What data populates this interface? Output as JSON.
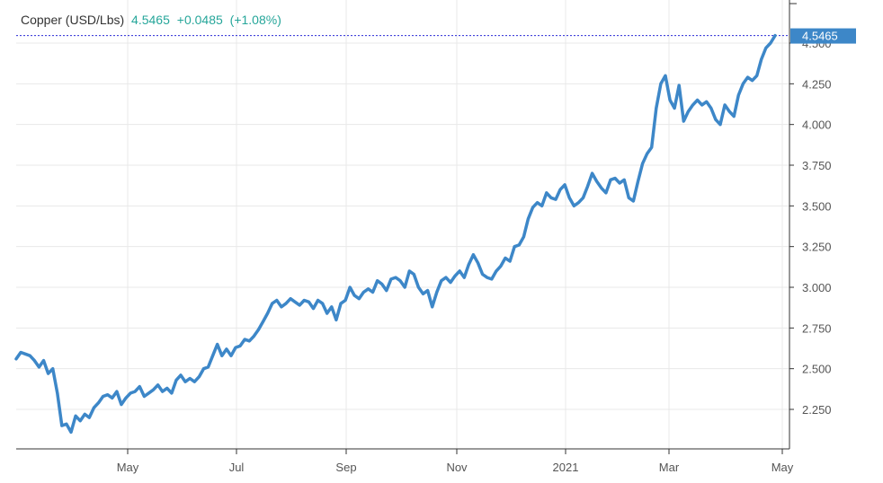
{
  "legend": {
    "name": "Copper (USD/Lbs)",
    "last": "4.5465",
    "change": "+0.0485",
    "change_pct": "(+1.08%)"
  },
  "colors": {
    "line": "#3d87c8",
    "grid": "#e8e8e8",
    "positive": "#26a69a",
    "last_label_bg": "#3d87c8",
    "last_line": "#2b2bd6"
  },
  "chart_data": {
    "type": "line",
    "title": "",
    "xlabel": "",
    "ylabel": "",
    "x_ticks": [
      "May",
      "Jul",
      "Sep",
      "Nov",
      "2021",
      "Mar",
      "May"
    ],
    "y_ticks": [
      "2.250",
      "2.500",
      "2.750",
      "3.000",
      "3.250",
      "3.500",
      "3.750",
      "4.000",
      "4.250",
      "4.500"
    ],
    "last_value": "4.5465",
    "grid": true,
    "series": [
      {
        "values": [
          2.56,
          2.6,
          2.59,
          2.58,
          2.55,
          2.51,
          2.55,
          2.47,
          2.5,
          2.35,
          2.15,
          2.16,
          2.11,
          2.21,
          2.18,
          2.22,
          2.2,
          2.26,
          2.29,
          2.33,
          2.34,
          2.32,
          2.36,
          2.28,
          2.32,
          2.35,
          2.36,
          2.39,
          2.33,
          2.35,
          2.37,
          2.4,
          2.36,
          2.38,
          2.35,
          2.43,
          2.46,
          2.42,
          2.44,
          2.42,
          2.45,
          2.5,
          2.51,
          2.58,
          2.65,
          2.58,
          2.62,
          2.58,
          2.63,
          2.64,
          2.68,
          2.67,
          2.7,
          2.74,
          2.79,
          2.84,
          2.9,
          2.92,
          2.88,
          2.9,
          2.93,
          2.91,
          2.89,
          2.92,
          2.91,
          2.87,
          2.92,
          2.9,
          2.84,
          2.88,
          2.8,
          2.9,
          2.92,
          3.0,
          2.95,
          2.93,
          2.97,
          2.99,
          2.97,
          3.04,
          3.02,
          2.98,
          3.05,
          3.06,
          3.04,
          3.0,
          3.1,
          3.08,
          3.0,
          2.96,
          2.98,
          2.88,
          2.97,
          3.04,
          3.06,
          3.03,
          3.07,
          3.1,
          3.06,
          3.14,
          3.2,
          3.15,
          3.08,
          3.06,
          3.05,
          3.1,
          3.13,
          3.18,
          3.16,
          3.25,
          3.26,
          3.31,
          3.42,
          3.49,
          3.52,
          3.5,
          3.58,
          3.55,
          3.54,
          3.6,
          3.63,
          3.55,
          3.5,
          3.52,
          3.55,
          3.62,
          3.7,
          3.65,
          3.61,
          3.58,
          3.66,
          3.67,
          3.64,
          3.66,
          3.55,
          3.53,
          3.65,
          3.76,
          3.82,
          3.86,
          4.1,
          4.25,
          4.3,
          4.15,
          4.1,
          4.24,
          4.02,
          4.08,
          4.12,
          4.15,
          4.12,
          4.14,
          4.1,
          4.03,
          4.0,
          4.12,
          4.08,
          4.05,
          4.18,
          4.25,
          4.29,
          4.27,
          4.3,
          4.4,
          4.47,
          4.5,
          4.5465
        ]
      }
    ]
  }
}
